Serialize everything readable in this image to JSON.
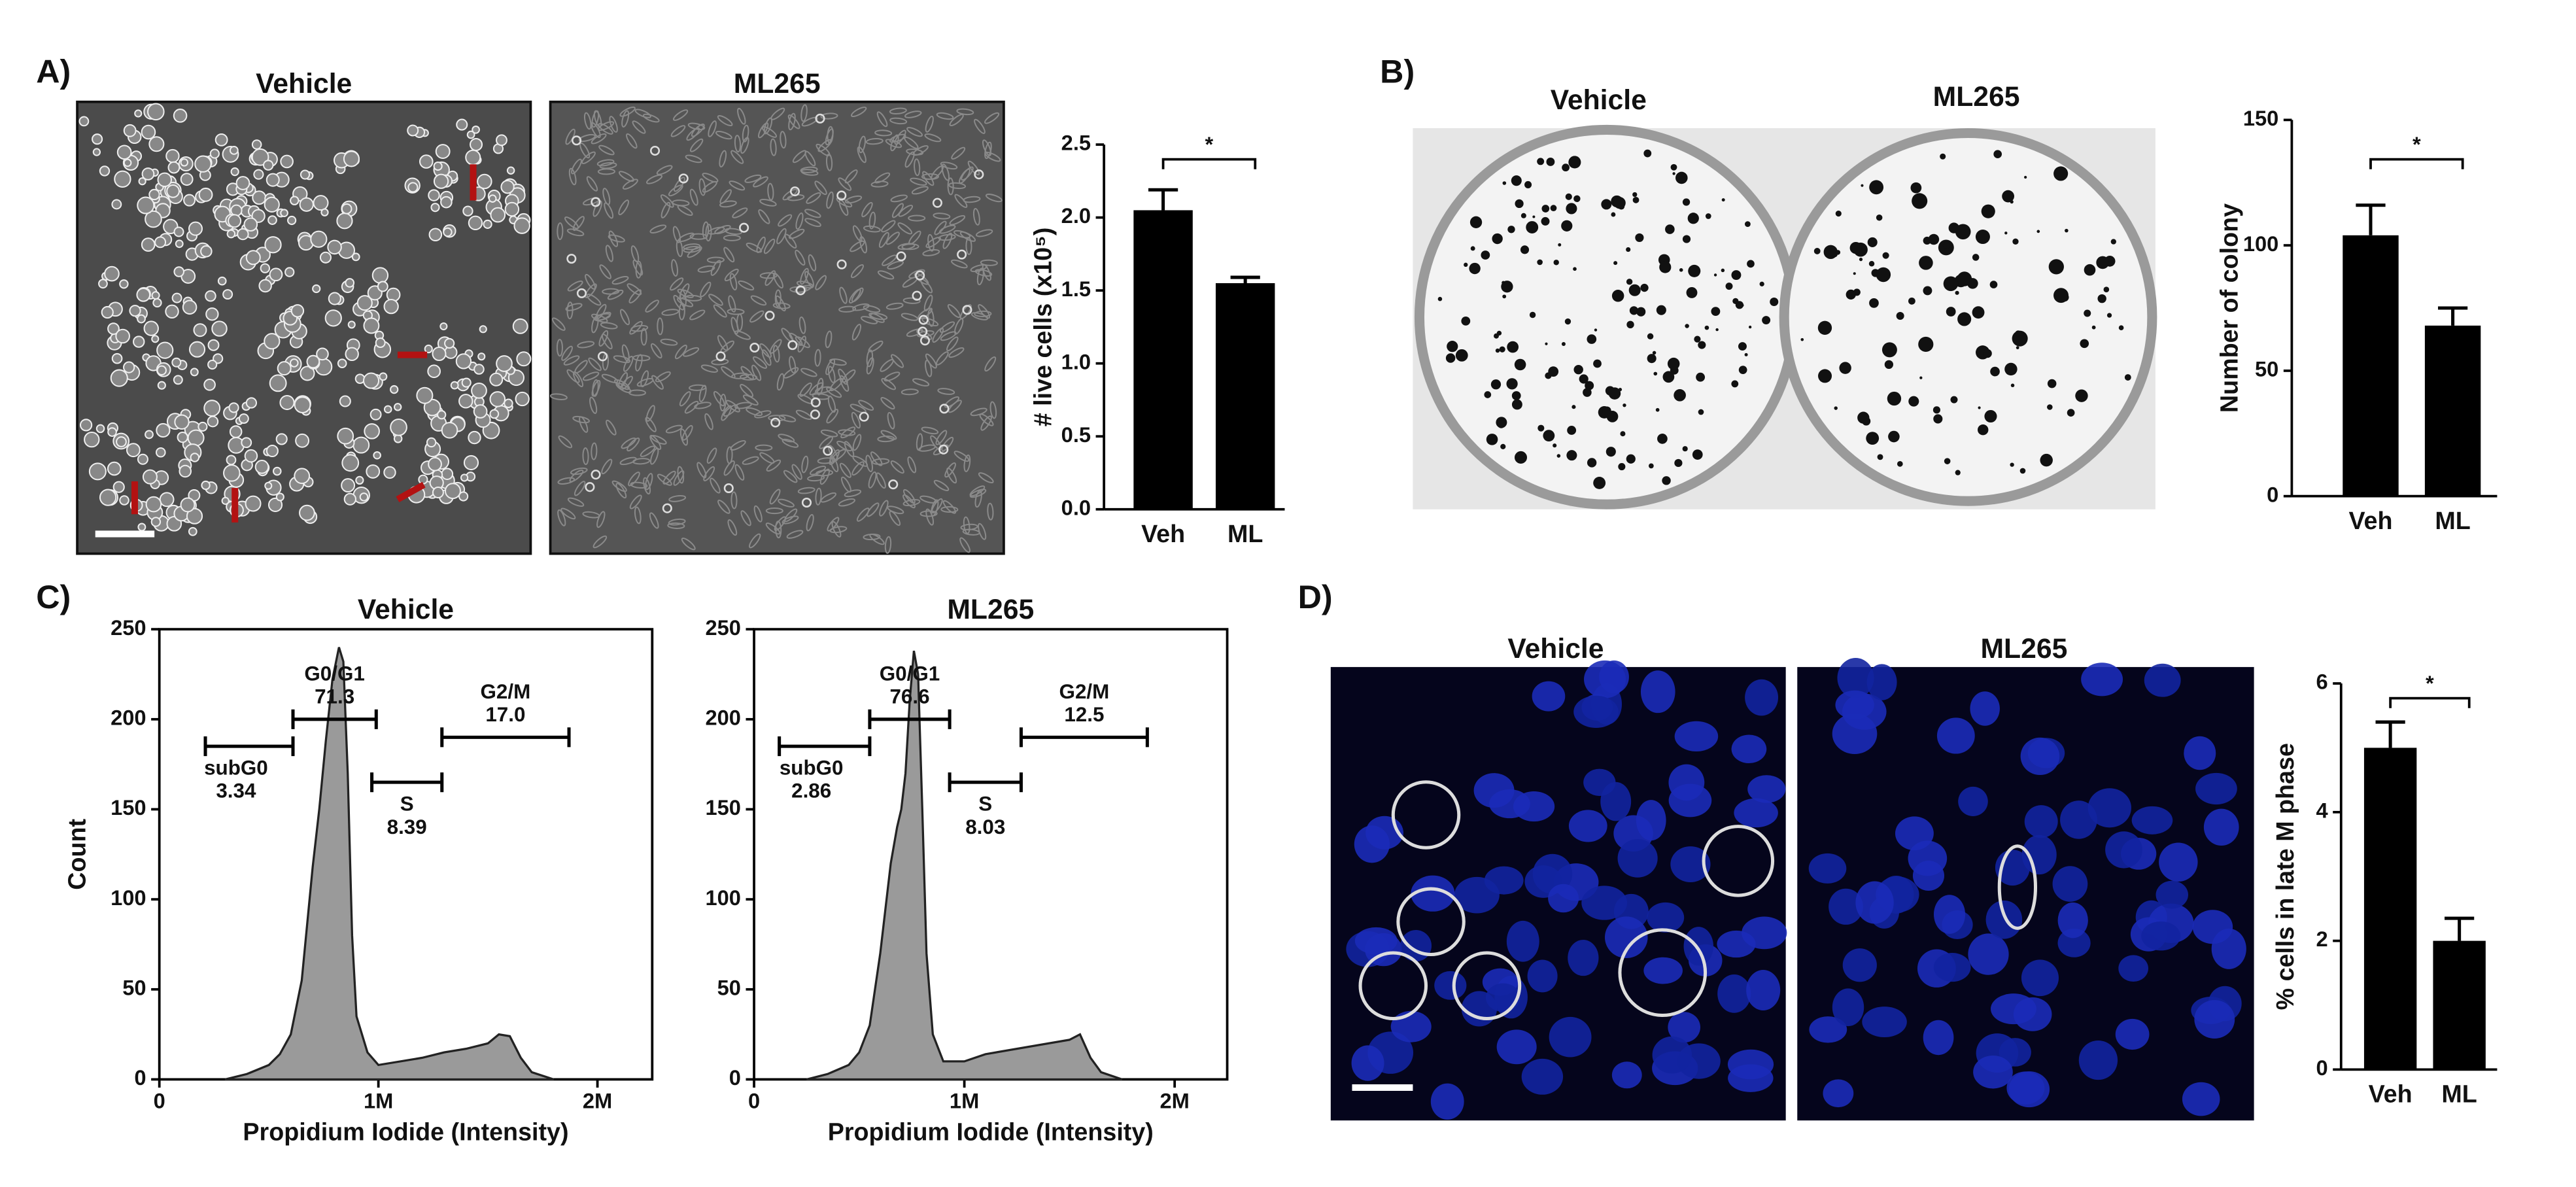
{
  "panels": [
    {
      "label": "A)",
      "image_titles": [
        "Vehicle",
        "ML265"
      ]
    },
    {
      "label": "B)",
      "image_titles": [
        "Vehicle",
        "ML265"
      ]
    },
    {
      "label": "C)"
    },
    {
      "label": "D)",
      "image_titles": [
        "Vehicle",
        "ML265"
      ]
    }
  ],
  "chart_data": [
    {
      "type": "bar",
      "ylabel": "# live cells (x10⁵)",
      "categories": [
        "Veh",
        "ML"
      ],
      "values": [
        2.05,
        1.55
      ],
      "errors": [
        0.14,
        0.04
      ],
      "color": "#000000",
      "ylim": [
        0,
        2.5
      ],
      "yticks": [
        {
          "value": 0,
          "label": "0.0"
        },
        0.5,
        {
          "value": 1,
          "label": "1.0"
        },
        1.5,
        {
          "value": 2,
          "label": "2.0"
        },
        2.5
      ],
      "significance": "*"
    },
    {
      "type": "bar",
      "ylabel": "Number of colony",
      "categories": [
        "Veh",
        "ML"
      ],
      "values": [
        104,
        68
      ],
      "errors": [
        12,
        7
      ],
      "color": "#000000",
      "ylim": [
        0,
        150
      ],
      "yticks": [
        0,
        50,
        100,
        150
      ],
      "significance": "*"
    },
    {
      "type": "histogram",
      "title": "Vehicle",
      "xlabel": "Propidium Iodide (Intensity)",
      "ylabel": "Count",
      "color": "#9a9a9a",
      "x": [
        300000,
        400000,
        500000,
        550000,
        600000,
        650000,
        700000,
        730000,
        760000,
        790000,
        820000,
        840000,
        860000,
        880000,
        900000,
        950000,
        1000000,
        1100000,
        1200000,
        1300000,
        1400000,
        1500000,
        1550000,
        1600000,
        1650000,
        1700000,
        1800000
      ],
      "values": [
        0,
        3,
        8,
        14,
        25,
        55,
        118,
        150,
        188,
        222,
        240,
        232,
        170,
        80,
        35,
        15,
        8,
        10,
        12,
        15,
        17,
        20,
        25,
        24,
        12,
        4,
        0
      ],
      "xlim": [
        0,
        2250000
      ],
      "xticks": [
        0,
        {
          "value": 1000000,
          "label": "1M"
        },
        {
          "value": 2000000,
          "label": "2M"
        }
      ],
      "ylim": [
        0,
        250
      ],
      "yticks": [
        0,
        50,
        100,
        150,
        200,
        250
      ],
      "gates": [
        {
          "name": "subG0",
          "value": 3.34,
          "x": [
            210000,
            610000
          ]
        },
        {
          "name": "G0/G1",
          "value": 71.3,
          "x": [
            610000,
            990000
          ]
        },
        {
          "name": "S",
          "value": 8.39,
          "x": [
            970000,
            1290000
          ]
        },
        {
          "name": "G2/M",
          "value": 17,
          "value_label": "17.0",
          "x": [
            1290000,
            1870000
          ]
        }
      ]
    },
    {
      "type": "histogram",
      "title": "ML265",
      "xlabel": "Propidium Iodide (Intensity)",
      "ylabel": "Count",
      "color": "#9a9a9a",
      "x": [
        250000,
        350000,
        450000,
        500000,
        550000,
        600000,
        650000,
        680000,
        700000,
        720000,
        740000,
        760000,
        780000,
        800000,
        820000,
        850000,
        900000,
        1000000,
        1100000,
        1200000,
        1300000,
        1400000,
        1500000,
        1550000,
        1600000,
        1650000,
        1750000
      ],
      "values": [
        0,
        3,
        8,
        15,
        30,
        70,
        120,
        140,
        150,
        170,
        210,
        238,
        225,
        150,
        70,
        25,
        10,
        10,
        14,
        16,
        18,
        20,
        22,
        25,
        12,
        4,
        0
      ],
      "xlim": [
        0,
        2250000
      ],
      "xticks": [
        0,
        {
          "value": 1000000,
          "label": "1M"
        },
        {
          "value": 2000000,
          "label": "2M"
        }
      ],
      "ylim": [
        0,
        250
      ],
      "yticks": [
        0,
        50,
        100,
        150,
        200,
        250
      ],
      "gates": [
        {
          "name": "subG0",
          "value": 2.86,
          "x": [
            120000,
            550000
          ]
        },
        {
          "name": "G0/G1",
          "value": 76.6,
          "x": [
            550000,
            930000
          ]
        },
        {
          "name": "S",
          "value": 8.03,
          "x": [
            930000,
            1270000
          ]
        },
        {
          "name": "G2/M",
          "value": 12.5,
          "x": [
            1270000,
            1870000
          ]
        }
      ]
    },
    {
      "type": "bar",
      "ylabel": "% cells in late M phase",
      "categories": [
        "Veh",
        "ML"
      ],
      "values": [
        5.0,
        2.0
      ],
      "errors": [
        0.4,
        0.35
      ],
      "color": "#000000",
      "ylim": [
        0,
        6
      ],
      "yticks": [
        0,
        2,
        4,
        6
      ],
      "significance": "*"
    }
  ]
}
